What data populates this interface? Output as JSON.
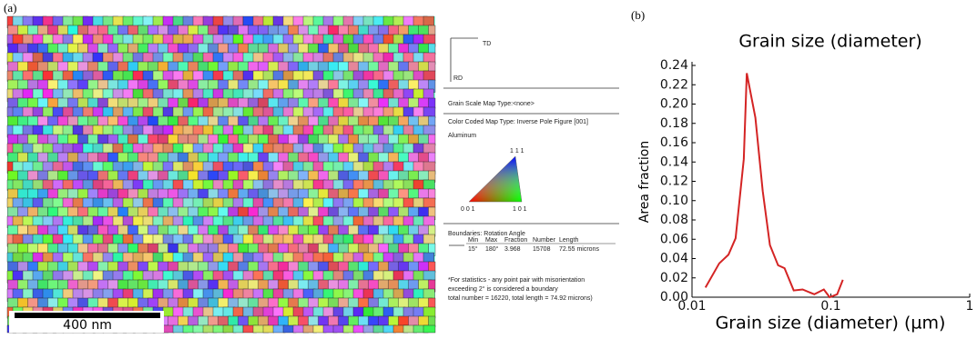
{
  "panel_a": {
    "label": "(a)",
    "scale_bar": "400 nm"
  },
  "legend": {
    "td": "TD",
    "rd": "RD",
    "grain_scale": "Grain Scale Map Type:<none>",
    "color_coded": "Color Coded Map Type: Inverse Pole Figure [001]",
    "material": "Aluminum",
    "ipf_111": "1 1 1",
    "ipf_001": "0 0 1",
    "ipf_101": "1 0 1",
    "boundaries": "Boundaries: Rotation Angle",
    "table": {
      "header": [
        "Min",
        "Max",
        "Fraction",
        "Number",
        "Length"
      ],
      "row": [
        "15°",
        "180°",
        "3.968",
        "15708",
        "72.55 microns"
      ]
    },
    "note": [
      "*For statistics - any point pair with misorientation",
      "exceeding 2° is considered a boundary",
      "total number = 16220, total length = 74.92 microns)"
    ]
  },
  "panel_b": {
    "label": "(b)"
  },
  "chart_data": {
    "type": "line",
    "title": "Grain size (diameter)",
    "x_label": "Grain size (diameter) (µm)",
    "y_label": "Area fraction",
    "x": [
      0.0125,
      0.0157,
      0.0183,
      0.0206,
      0.0236,
      0.0248,
      0.0286,
      0.0323,
      0.0364,
      0.0417,
      0.0464,
      0.054,
      0.0626,
      0.076,
      0.089,
      0.098,
      0.111,
      0.122
    ],
    "series": [
      {
        "name": "Area fraction",
        "color": "#d42424",
        "values": [
          0.01,
          0.035,
          0.044,
          0.061,
          0.143,
          0.232,
          0.186,
          0.11,
          0.054,
          0.033,
          0.03,
          0.007,
          0.008,
          0.003,
          0.008,
          0,
          0.003,
          0.018
        ]
      }
    ],
    "xlim": [
      0.01,
      1
    ],
    "xscale": "log",
    "xticks": [
      0.01,
      0.1,
      1
    ],
    "ylim": [
      0,
      0.24
    ],
    "yticks": [
      {
        "value": 0,
        "label": "0.00"
      },
      0.02,
      0.04,
      0.06,
      0.08,
      {
        "value": 0.1,
        "label": "0.10"
      },
      0.12,
      0.14,
      0.16,
      0.18,
      {
        "value": 0.2,
        "label": "0.20"
      },
      0.22,
      0.24
    ]
  }
}
